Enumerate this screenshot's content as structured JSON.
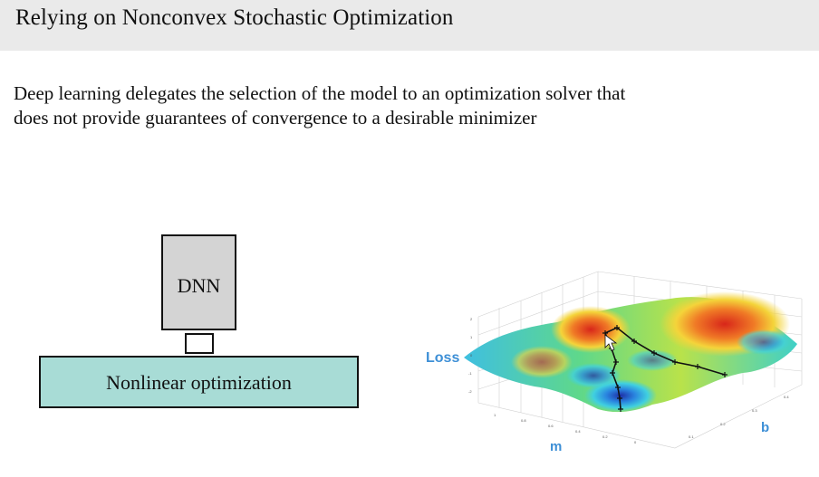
{
  "slide": {
    "title": "Relying on Nonconvex Stochastic Optimization",
    "body_line1": "Deep learning delegates the selection of the model to an optimization solver that",
    "body_line2": "does not provide guarantees of convergence to a desirable minimizer"
  },
  "diagram": {
    "dnn_label": "DNN",
    "optimizer_label": "Nonlinear optimization"
  },
  "surface_plot": {
    "z_axis_label": "Loss",
    "x_axis_label": "m",
    "y_axis_label": "b",
    "colors": {
      "low": "#1a2fb0",
      "mid": "#3fd08a",
      "high": "#e23a1f",
      "path": "#111111",
      "axis_label": "#3d8fd6"
    }
  }
}
